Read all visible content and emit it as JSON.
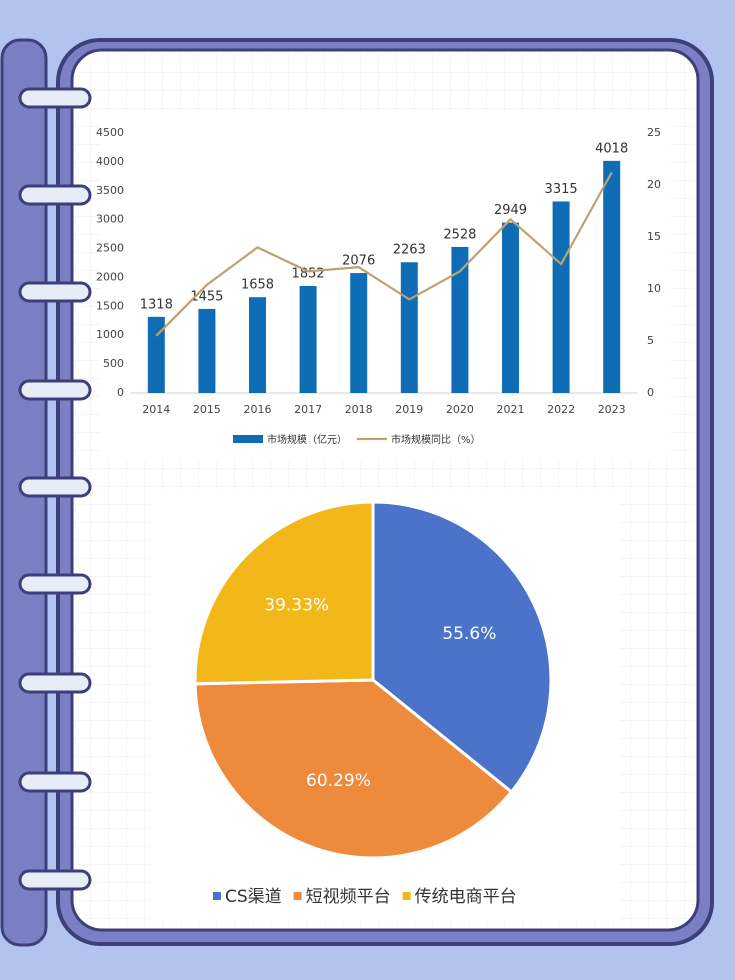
{
  "chart_data": [
    {
      "type": "bar",
      "categories": [
        "2014",
        "2015",
        "2016",
        "2017",
        "2018",
        "2019",
        "2020",
        "2021",
        "2022",
        "2023"
      ],
      "series": [
        {
          "name": "市场规模（亿元）",
          "color": "#0f6db5",
          "values": [
            1318,
            1455,
            1658,
            1852,
            2076,
            2263,
            2528,
            2949,
            3315,
            4018
          ]
        },
        {
          "name": "市场规模同比（%）",
          "color": "#bba36f",
          "axis": "y2",
          "type": "line",
          "values": [
            5.5,
            10.4,
            14.0,
            11.7,
            12.1,
            9.0,
            11.7,
            16.7,
            12.4,
            21.2
          ]
        }
      ],
      "ylim": [
        0,
        4500
      ],
      "yticks": [
        0,
        500,
        1000,
        1500,
        2000,
        2500,
        3000,
        3500,
        4000,
        4500
      ],
      "y2lim": [
        0,
        25
      ],
      "y2ticks": [
        0,
        5,
        10,
        15,
        20,
        25
      ],
      "legend": "bottom",
      "grid": false
    },
    {
      "type": "pie",
      "categories": [
        "CS渠道",
        "短视频平台",
        "传统电商平台"
      ],
      "values": [
        55.6,
        60.29,
        39.33
      ],
      "value_labels": [
        "55.6%",
        "60.29%",
        "39.33%"
      ],
      "colors": [
        "#4a73c9",
        "#ee8a3b",
        "#f2b81a"
      ],
      "legend": "bottom"
    }
  ]
}
